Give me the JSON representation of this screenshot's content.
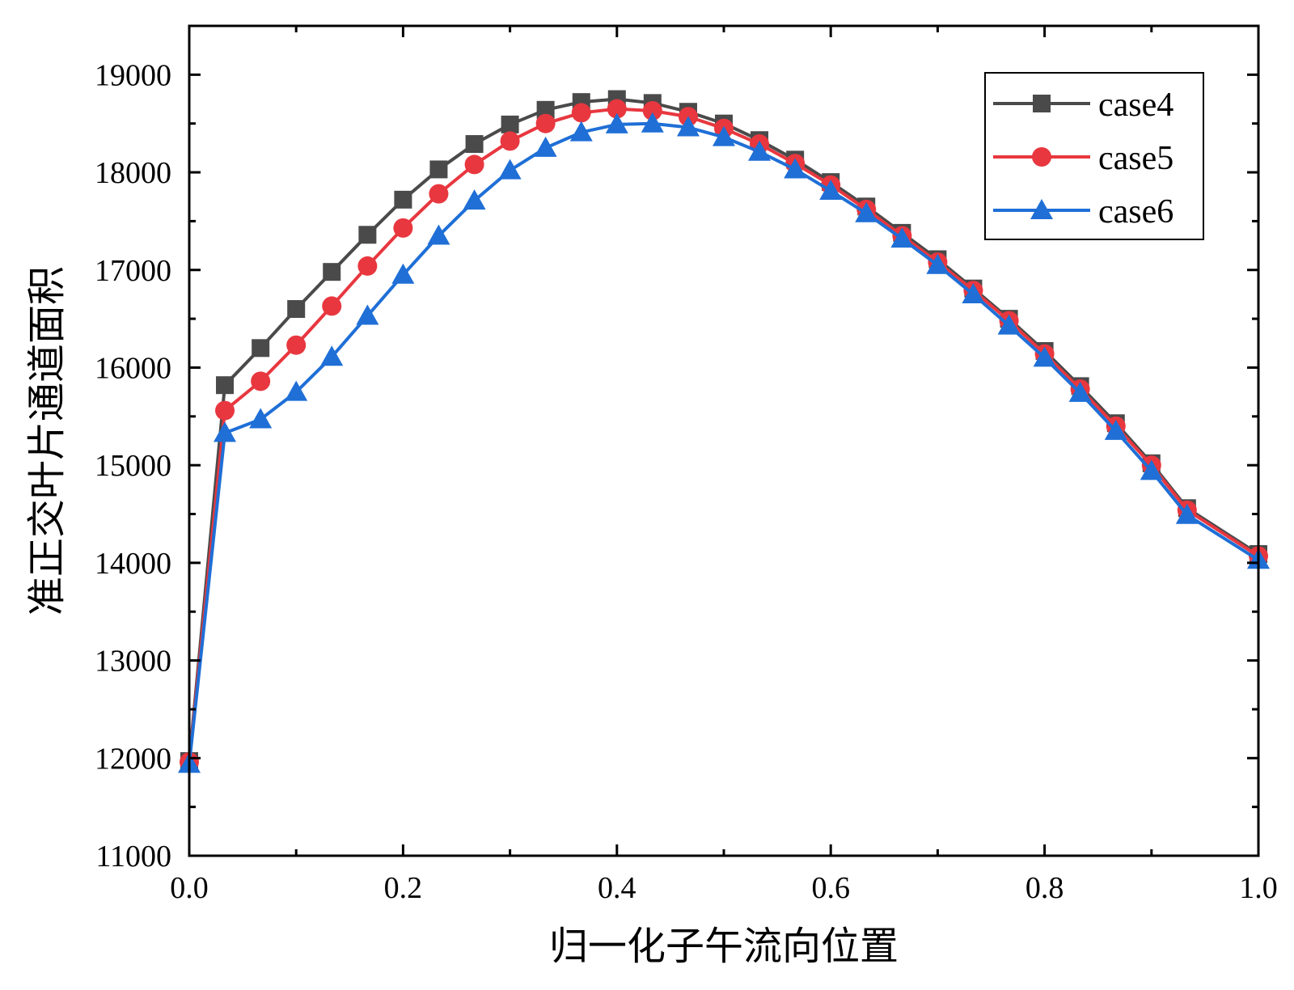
{
  "chart_data": {
    "type": "line",
    "title": "",
    "xlabel": "归一化子午流向位置",
    "ylabel": "准正交叶片通道面积",
    "xlim": [
      0.0,
      1.0
    ],
    "ylim": [
      11000,
      19500
    ],
    "x_ticks": [
      0.0,
      0.2,
      0.4,
      0.6,
      0.8,
      1.0
    ],
    "x_tick_labels": [
      "0.0",
      "0.2",
      "0.4",
      "0.6",
      "0.8",
      "1.0"
    ],
    "y_ticks": [
      11000,
      12000,
      13000,
      14000,
      15000,
      16000,
      17000,
      18000,
      19000
    ],
    "y_tick_labels": [
      "11000",
      "12000",
      "13000",
      "14000",
      "15000",
      "16000",
      "17000",
      "18000",
      "19000"
    ],
    "grid": false,
    "legend_position": "top-right",
    "x": [
      0,
      0.0333,
      0.0667,
      0.1,
      0.1333,
      0.1667,
      0.2,
      0.2333,
      0.2667,
      0.3,
      0.3333,
      0.3667,
      0.4,
      0.4333,
      0.4667,
      0.5,
      0.5333,
      0.5667,
      0.6,
      0.6333,
      0.6667,
      0.7,
      0.7333,
      0.7667,
      0.8,
      0.8333,
      0.8667,
      0.9,
      0.9333,
      1.0
    ],
    "series": [
      {
        "name": "case4",
        "color": "#4a4a4a",
        "marker": "square",
        "values": [
          11970,
          15820,
          16200,
          16600,
          16980,
          17360,
          17720,
          18030,
          18290,
          18490,
          18640,
          18720,
          18750,
          18710,
          18620,
          18500,
          18330,
          18130,
          17900,
          17650,
          17380,
          17110,
          16810,
          16500,
          16170,
          15810,
          15430,
          15020,
          14560,
          14090
        ]
      },
      {
        "name": "case5",
        "color": "#e8373f",
        "marker": "circle",
        "values": [
          11960,
          15560,
          15860,
          16230,
          16630,
          17040,
          17430,
          17780,
          18080,
          18320,
          18500,
          18610,
          18650,
          18630,
          18570,
          18450,
          18290,
          18090,
          17870,
          17620,
          17350,
          17080,
          16790,
          16480,
          16140,
          15780,
          15400,
          15000,
          14540,
          14070
        ]
      },
      {
        "name": "case6",
        "color": "#1f6fd6",
        "marker": "triangle",
        "values": [
          11940,
          15330,
          15470,
          15750,
          16110,
          16530,
          16950,
          17350,
          17710,
          18020,
          18250,
          18410,
          18490,
          18500,
          18460,
          18360,
          18210,
          18030,
          17810,
          17580,
          17320,
          17050,
          16750,
          16430,
          16100,
          15740,
          15350,
          14940,
          14490,
          14030
        ]
      }
    ]
  }
}
